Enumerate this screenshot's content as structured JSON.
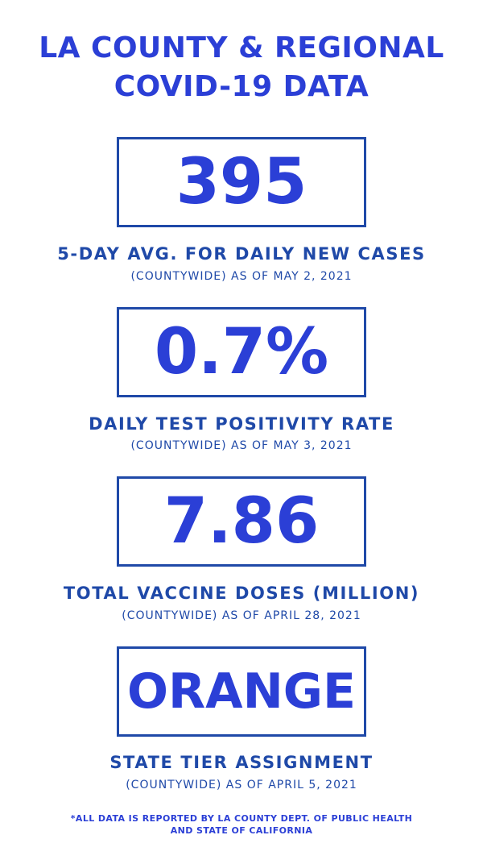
{
  "title": {
    "line1": "LA COUNTY & REGIONAL",
    "line2": "COVID-19 DATA"
  },
  "stats": [
    {
      "value": "395",
      "label": "5-DAY AVG. FOR DAILY NEW CASES",
      "sub": "(COUNTYWIDE) AS OF MAY 2, 2021"
    },
    {
      "value": "0.7%",
      "label": "DAILY TEST POSITIVITY RATE",
      "sub": "(COUNTYWIDE) AS OF MAY 3, 2021"
    },
    {
      "value": "7.86",
      "label": "TOTAL VACCINE DOSES (MILLION)",
      "sub": "(COUNTYWIDE) AS OF APRIL 28, 2021"
    },
    {
      "value": "ORANGE",
      "label": "STATE TIER ASSIGNMENT",
      "sub": "(COUNTYWIDE) AS OF APRIL 5, 2021"
    }
  ],
  "footnote": {
    "line1": "*ALL DATA IS REPORTED BY LA COUNTY DEPT. OF PUBLIC HEALTH",
    "line2": "AND STATE OF CALIFORNIA"
  },
  "colors": {
    "accent": "#2b3fd6",
    "border": "#1f49a8",
    "background": "#ffffff"
  }
}
